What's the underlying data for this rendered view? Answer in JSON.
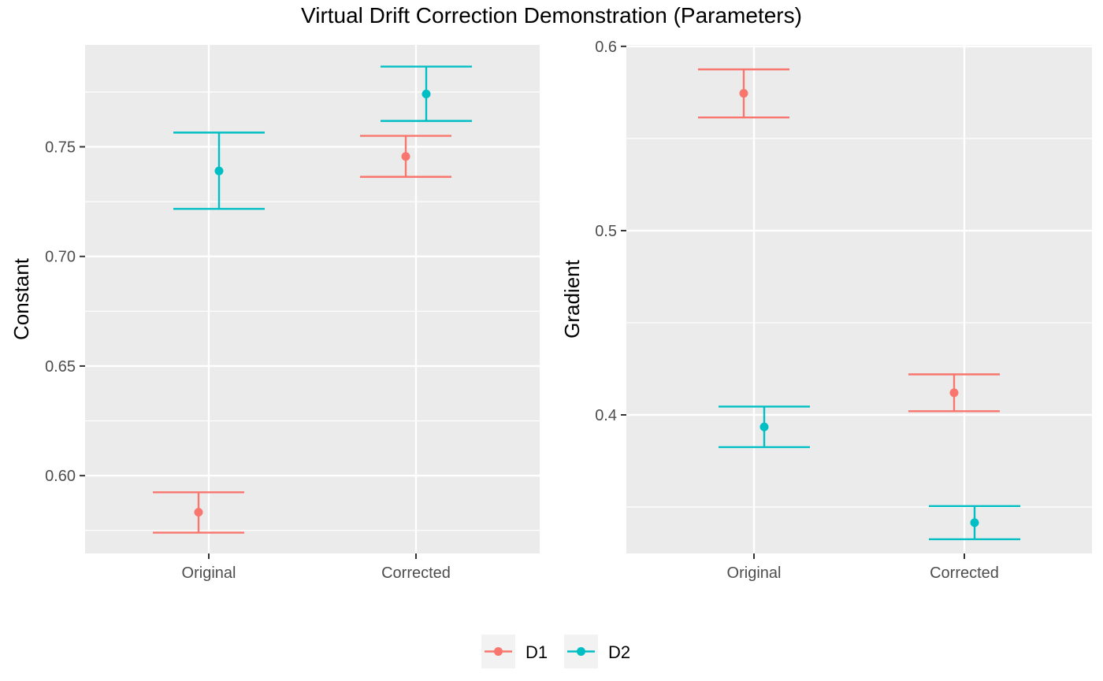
{
  "title": "Virtual Drift Correction Demonstration (Parameters)",
  "legend": [
    {
      "name": "D1",
      "color": "#F8766D"
    },
    {
      "name": "D2",
      "color": "#00BFC4"
    }
  ],
  "chart_data": [
    {
      "type": "scatter",
      "ylabel": "Constant",
      "categories": [
        "Original",
        "Corrected"
      ],
      "ylim": [
        0.5645,
        0.7965
      ],
      "yticks": [
        0.6,
        0.65,
        0.7,
        0.75
      ],
      "ytick_labels": [
        "0.60",
        "0.65",
        "0.70",
        "0.75"
      ],
      "grid": true,
      "series": [
        {
          "name": "D1",
          "color": "#F8766D",
          "values": [
            0.5833,
            0.7456
          ],
          "lower": [
            0.574,
            0.7363
          ],
          "upper": [
            0.5924,
            0.755
          ]
        },
        {
          "name": "D2",
          "color": "#00BFC4",
          "values": [
            0.739,
            0.7741
          ],
          "lower": [
            0.7217,
            0.7618
          ],
          "upper": [
            0.7565,
            0.7866
          ]
        }
      ]
    },
    {
      "type": "scatter",
      "ylabel": "Gradient",
      "categories": [
        "Original",
        "Corrected"
      ],
      "ylim": [
        0.3248,
        0.6008
      ],
      "yticks": [
        0.4,
        0.5,
        0.6
      ],
      "ytick_labels": [
        "0.4",
        "0.5",
        "0.6"
      ],
      "grid": true,
      "series": [
        {
          "name": "D1",
          "color": "#F8766D",
          "values": [
            0.5745,
            0.412
          ],
          "lower": [
            0.5614,
            0.402
          ],
          "upper": [
            0.5875,
            0.422
          ]
        },
        {
          "name": "D2",
          "color": "#00BFC4",
          "values": [
            0.3935,
            0.3415
          ],
          "lower": [
            0.3825,
            0.3325
          ],
          "upper": [
            0.4045,
            0.3505
          ]
        }
      ]
    }
  ]
}
